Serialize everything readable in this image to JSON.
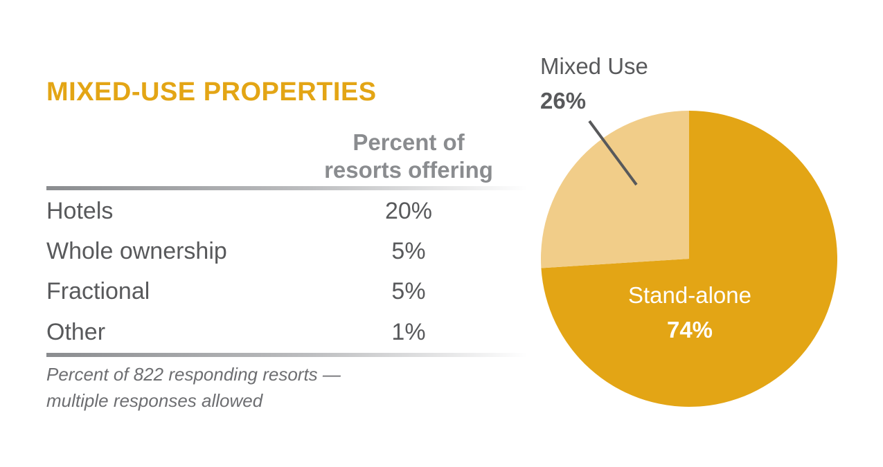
{
  "title": "MIXED-USE PROPERTIES",
  "table": {
    "header_line1": "Percent of",
    "header_line2": "resorts offering",
    "rows": [
      {
        "label": "Hotels",
        "value": "20%"
      },
      {
        "label": "Whole ownership",
        "value": "5%"
      },
      {
        "label": "Fractional",
        "value": "5%"
      },
      {
        "label": "Other",
        "value": "1%"
      }
    ],
    "footnote_line1": "Percent of 822 responding resorts —",
    "footnote_line2": "multiple responses allowed"
  },
  "colors": {
    "accent": "#E3A515",
    "light_accent": "#F1CD89",
    "text": "#58595B",
    "header": "#8A8C8F"
  },
  "chart_data": [
    {
      "type": "table",
      "title": "MIXED-USE PROPERTIES",
      "columns": [
        "",
        "Percent of resorts offering"
      ],
      "rows": [
        [
          "Hotels",
          20
        ],
        [
          "Whole ownership",
          5
        ],
        [
          "Fractional",
          5
        ],
        [
          "Other",
          1
        ]
      ],
      "unit": "%"
    },
    {
      "type": "pie",
      "slices": [
        {
          "label": "Mixed Use",
          "value": 26,
          "display": "26%",
          "color": "#F1CD89"
        },
        {
          "label": "Stand-alone",
          "value": 74,
          "display": "74%",
          "color": "#E3A515"
        }
      ]
    }
  ]
}
